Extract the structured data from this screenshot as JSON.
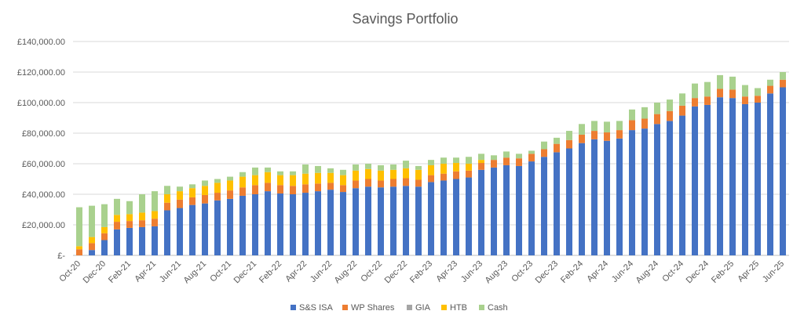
{
  "chart_data": {
    "type": "bar",
    "stacked": true,
    "title": "Savings Portfolio",
    "xlabel": "",
    "ylabel": "",
    "ylim": [
      0,
      140000
    ],
    "yticks": [
      0,
      20000,
      40000,
      60000,
      80000,
      100000,
      120000,
      140000
    ],
    "ytick_labels": [
      "£-",
      "£20,000.00",
      "£40,000.00",
      "£60,000.00",
      "£80,000.00",
      "£100,000.00",
      "£120,000.00",
      "£140,000.00"
    ],
    "grid": true,
    "legend_position": "bottom",
    "categories": [
      "Oct-20",
      "Nov-20",
      "Dec-20",
      "Jan-21",
      "Feb-21",
      "Mar-21",
      "Apr-21",
      "May-21",
      "Jun-21",
      "Jul-21",
      "Aug-21",
      "Sep-21",
      "Oct-21",
      "Nov-21",
      "Dec-21",
      "Jan-22",
      "Feb-22",
      "Mar-22",
      "Apr-22",
      "May-22",
      "Jun-22",
      "Jul-22",
      "Aug-22",
      "Sep-22",
      "Oct-22",
      "Nov-22",
      "Dec-22",
      "Jan-23",
      "Feb-23",
      "Mar-23",
      "Apr-23",
      "May-23",
      "Jun-23",
      "Jul-23",
      "Aug-23",
      "Sep-23",
      "Oct-23",
      "Nov-23",
      "Dec-23",
      "Jan-24",
      "Feb-24",
      "Mar-24",
      "Apr-24",
      "May-24",
      "Jun-24",
      "Jul-24",
      "Aug-24",
      "Sep-24",
      "Oct-24",
      "Nov-24",
      "Dec-24",
      "Jan-25",
      "Feb-25",
      "Mar-25",
      "Apr-25",
      "May-25",
      "Jun-25"
    ],
    "tick_labels": [
      "Oct-20",
      "Dec-20",
      "Feb-21",
      "Apr-21",
      "Jun-21",
      "Aug-21",
      "Oct-21",
      "Dec-21",
      "Feb-22",
      "Apr-22",
      "Jun-22",
      "Aug-22",
      "Oct-22",
      "Dec-22",
      "Feb-23",
      "Apr-23",
      "Jun-23",
      "Aug-23",
      "Oct-23",
      "Dec-23",
      "Feb-24",
      "Apr-24",
      "Jun-24",
      "Aug-24",
      "Oct-24",
      "Dec-24",
      "Feb-25",
      "Apr-25",
      "Jun-25"
    ],
    "series": [
      {
        "name": "S&S ISA",
        "color": "#4472C4",
        "values": [
          0,
          3500,
          10000,
          17000,
          18000,
          18500,
          19000,
          29500,
          31000,
          33000,
          34000,
          36000,
          37000,
          39000,
          40000,
          42000,
          40500,
          40000,
          41000,
          42000,
          43000,
          41500,
          44000,
          45000,
          44500,
          45000,
          45500,
          45000,
          48000,
          49000,
          50000,
          51000,
          56000,
          57500,
          59000,
          58500,
          61500,
          64500,
          67500,
          70000,
          73500,
          76000,
          75000,
          76500,
          82000,
          83000,
          86000,
          88000,
          91500,
          97500,
          98500,
          103500,
          103000,
          99000,
          100000,
          106000,
          110000
        ]
      },
      {
        "name": "WP Shares",
        "color": "#ED7D31",
        "values": [
          4000,
          4500,
          4500,
          5000,
          4500,
          4500,
          5000,
          5000,
          5500,
          5000,
          5500,
          5000,
          5500,
          5500,
          6000,
          5500,
          5500,
          5500,
          5500,
          5000,
          4500,
          4500,
          5000,
          5000,
          4500,
          5000,
          5000,
          4500,
          4500,
          4500,
          5000,
          4500,
          4500,
          5000,
          5000,
          5000,
          5000,
          5000,
          5500,
          5500,
          5500,
          5500,
          5500,
          5500,
          6500,
          6500,
          6500,
          6500,
          6500,
          5500,
          5500,
          5500,
          5500,
          5000,
          4500,
          5000,
          5000
        ]
      },
      {
        "name": "GIA",
        "color": "#A5A5A5",
        "values": [
          0,
          0,
          0,
          0,
          0,
          0,
          0,
          0,
          0,
          0,
          0,
          0,
          0,
          0,
          0,
          0,
          0,
          0,
          0,
          0,
          0,
          0,
          0,
          0,
          0,
          0,
          0,
          0,
          0,
          0,
          0,
          0,
          0,
          0,
          0,
          0,
          0,
          0,
          0,
          0,
          0,
          0,
          0,
          0,
          0,
          0,
          0,
          0,
          0,
          0,
          0,
          0,
          0,
          0,
          0,
          0,
          0
        ]
      },
      {
        "name": "HTB",
        "color": "#FFC000",
        "values": [
          2000,
          4000,
          4000,
          4500,
          4500,
          5000,
          5000,
          5500,
          5500,
          6000,
          6000,
          6500,
          6500,
          7000,
          6500,
          7000,
          6500,
          7000,
          7000,
          7000,
          6500,
          6500,
          6500,
          6500,
          6500,
          6000,
          6500,
          6500,
          6500,
          6500,
          5500,
          4500,
          2000,
          0,
          0,
          0,
          0,
          0,
          0,
          0,
          0,
          0,
          0,
          0,
          0,
          0,
          0,
          0,
          0,
          0,
          0,
          0,
          0,
          0,
          0,
          0,
          0
        ]
      },
      {
        "name": "Cash",
        "color": "#A9D18E",
        "values": [
          25500,
          20500,
          15000,
          10500,
          8500,
          12000,
          13000,
          5500,
          3000,
          2500,
          3500,
          2500,
          2500,
          3000,
          5000,
          3000,
          2500,
          2500,
          6000,
          4500,
          3000,
          3500,
          4000,
          3500,
          3500,
          3500,
          5000,
          2500,
          3500,
          4000,
          3500,
          4500,
          4000,
          3000,
          4000,
          3000,
          2000,
          5000,
          4000,
          6000,
          7000,
          6500,
          7000,
          6000,
          7000,
          7500,
          7500,
          7500,
          8000,
          9500,
          9500,
          9000,
          8500,
          7500,
          5000,
          4000,
          5000
        ]
      }
    ]
  }
}
